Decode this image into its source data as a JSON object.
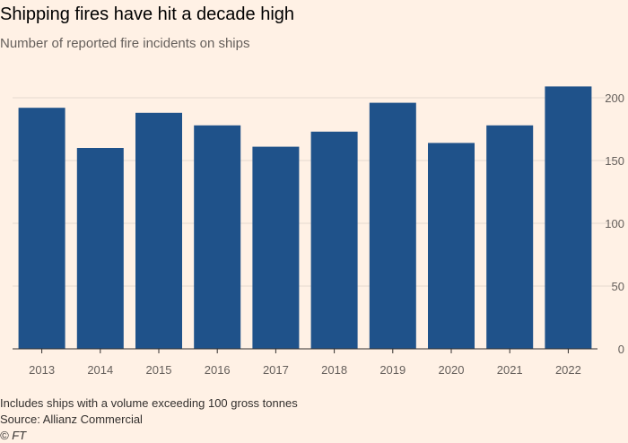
{
  "header": {
    "title": "Shipping fires have hit a decade high",
    "subtitle": "Number of reported fire incidents on ships"
  },
  "footer": {
    "note": "Includes ships with a volume exceeding 100 gross tonnes",
    "source": "Source: Allianz Commercial",
    "credit": "© FT"
  },
  "colors": {
    "bar": "#1f528a",
    "background": "#fff1e5",
    "gridline": "#e6d9ce",
    "baseline": "#33302e",
    "tick_text": "#66605c"
  },
  "chart_data": {
    "type": "bar",
    "title": "Shipping fires have hit a decade high",
    "subtitle": "Number of reported fire incidents on ships",
    "categories": [
      "2013",
      "2014",
      "2015",
      "2016",
      "2017",
      "2018",
      "2019",
      "2020",
      "2021",
      "2022"
    ],
    "values": [
      192,
      160,
      188,
      178,
      161,
      173,
      196,
      164,
      178,
      209
    ],
    "xlabel": "",
    "ylabel": "",
    "ylim": [
      0,
      200
    ],
    "yticks": [
      0,
      50,
      100,
      150,
      200
    ],
    "y_axis_side": "right",
    "grid": true
  }
}
